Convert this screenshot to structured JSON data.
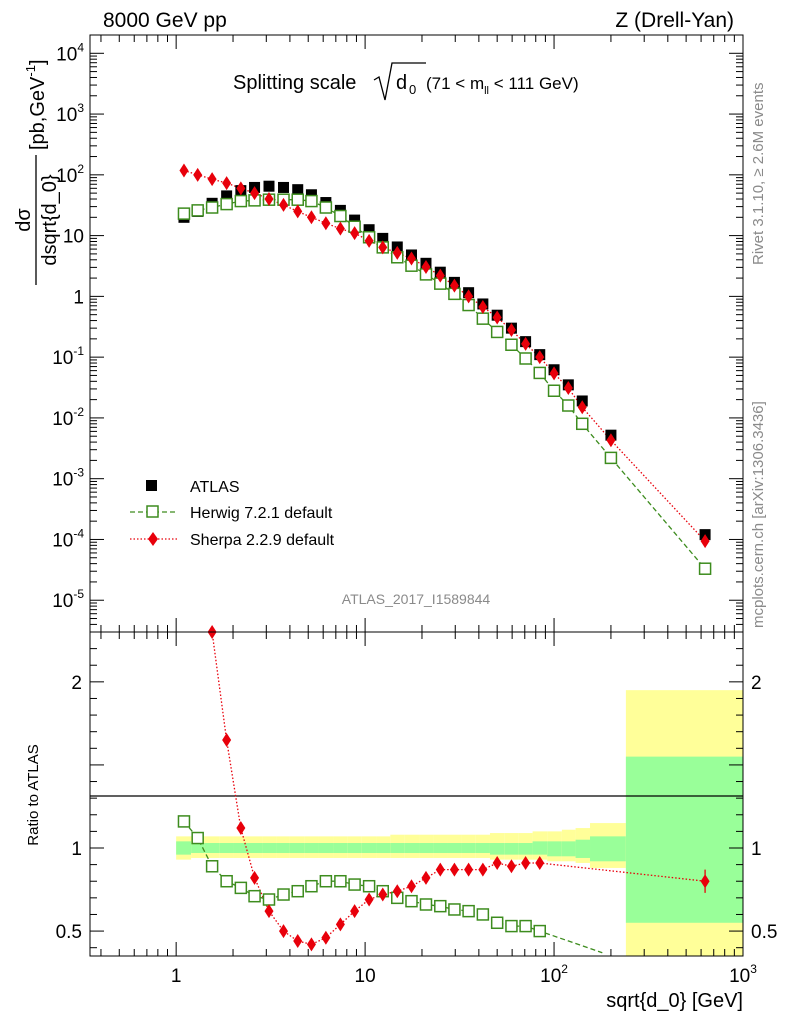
{
  "header": {
    "left": "8000 GeV pp",
    "right": "Z (Drell-Yan)"
  },
  "side_labels": {
    "rivet": "Rivet 3.1.10, ≥ 2.6M events",
    "mcplots": "mcplots.cern.ch [arXiv:1306.3436]"
  },
  "chart_data": [
    {
      "type": "scatter",
      "panel": "main",
      "title_text": "Splitting scale",
      "title_sqrt_symbol": "d",
      "title_sqrt_sub": "0",
      "title_range": "(71 < m",
      "title_range_sub": "ll",
      "title_range_end": " < 111 GeV)",
      "ylabel_num": "dσ",
      "ylabel_den": "dsqrt{d_0}",
      "ylabel_units": "[pb,GeV",
      "ylabel_units_sup": "-1",
      "ylabel_units_end": "]",
      "watermark": "ATLAS_2017_I1589844",
      "x_scale": "log",
      "y_scale": "log",
      "xlim": [
        0.35,
        1000
      ],
      "ylim": [
        3e-06,
        20000
      ],
      "y_ticks": [
        {
          "v": 1e-05,
          "base": "10",
          "exp": "-5"
        },
        {
          "v": 0.0001,
          "base": "10",
          "exp": "-4"
        },
        {
          "v": 0.001,
          "base": "10",
          "exp": "-3"
        },
        {
          "v": 0.01,
          "base": "10",
          "exp": "-2"
        },
        {
          "v": 0.1,
          "base": "10",
          "exp": "-1"
        },
        {
          "v": 1,
          "base": "1",
          "exp": ""
        },
        {
          "v": 10,
          "base": "10",
          "exp": ""
        },
        {
          "v": 100,
          "base": "10",
          "exp": "2"
        },
        {
          "v": 1000,
          "base": "10",
          "exp": "3"
        },
        {
          "v": 10000,
          "base": "10",
          "exp": "4"
        }
      ],
      "legend_position": "lower-left",
      "series": [
        {
          "name": "ATLAS",
          "color": "#000000",
          "marker": "filled-square",
          "x": [
            1.1,
            1.3,
            1.55,
            1.85,
            2.2,
            2.6,
            3.1,
            3.7,
            4.4,
            5.2,
            6.2,
            7.4,
            8.8,
            10.5,
            12.4,
            14.8,
            17.6,
            21,
            25,
            29.7,
            35.3,
            42,
            50,
            59.5,
            70.7,
            84,
            100,
            119,
            141,
            200,
            630
          ],
          "y": [
            20,
            25,
            34,
            45,
            55,
            62,
            65,
            62,
            57,
            47,
            35,
            26,
            18,
            12.5,
            9,
            6.5,
            4.8,
            3.5,
            2.5,
            1.7,
            1.15,
            0.75,
            0.49,
            0.3,
            0.18,
            0.11,
            0.062,
            0.035,
            0.019,
            0.0052,
            0.00012
          ]
        },
        {
          "name": "Herwig 7.2.1 default",
          "color": "#3d8c1e",
          "marker": "open-square",
          "x": [
            1.1,
            1.3,
            1.55,
            1.85,
            2.2,
            2.6,
            3.1,
            3.7,
            4.4,
            5.2,
            6.2,
            7.4,
            8.8,
            10.5,
            12.4,
            14.8,
            17.6,
            21,
            25,
            29.7,
            35.3,
            42,
            50,
            59.5,
            70.7,
            84,
            100,
            119,
            141,
            200,
            630
          ],
          "y": [
            23,
            26,
            29,
            33,
            37,
            38,
            39,
            39,
            39,
            37,
            29,
            21,
            14,
            9.4,
            6.4,
            4.4,
            3.2,
            2.3,
            1.62,
            1.1,
            0.72,
            0.43,
            0.26,
            0.16,
            0.095,
            0.055,
            0.028,
            0.016,
            0.008,
            0.0022,
            3.3e-05
          ]
        },
        {
          "name": "Sherpa 2.2.9 default",
          "color": "#e8000b",
          "marker": "filled-diamond",
          "x": [
            1.1,
            1.3,
            1.55,
            1.85,
            2.2,
            2.6,
            3.1,
            3.7,
            4.4,
            5.2,
            6.2,
            7.4,
            8.8,
            10.5,
            12.4,
            14.8,
            17.6,
            21,
            25,
            29.7,
            35.3,
            42,
            50,
            59.5,
            70.7,
            84,
            100,
            119,
            141,
            200,
            630
          ],
          "y": [
            118,
            100,
            85,
            73,
            60,
            50,
            40,
            32,
            25,
            20,
            16,
            13,
            11,
            8.2,
            6.4,
            5.2,
            4.2,
            3.05,
            2.2,
            1.5,
            1,
            0.67,
            0.45,
            0.28,
            0.165,
            0.1,
            0.054,
            0.031,
            0.015,
            0.0043,
            9.4e-05
          ]
        }
      ]
    },
    {
      "type": "scatter",
      "panel": "ratio",
      "ylabel": "Ratio to ATLAS",
      "xlabel": "sqrt{d_0} [GeV]",
      "x_scale": "log",
      "xlim": [
        0.35,
        1000
      ],
      "ylim": [
        0.35,
        2.3
      ],
      "x_ticks": [
        {
          "v": 1,
          "base": "1",
          "exp": ""
        },
        {
          "v": 10,
          "base": "10",
          "exp": ""
        },
        {
          "v": 100,
          "base": "10",
          "exp": "2"
        },
        {
          "v": 1000,
          "base": "10",
          "exp": "3"
        }
      ],
      "y_ticks": [
        {
          "v": 0.5,
          "label": "0.5"
        },
        {
          "v": 1,
          "label": "1"
        },
        {
          "v": 2,
          "label": "2"
        }
      ],
      "reference_line": 1,
      "uncertainty_bands": {
        "edges": [
          1,
          1.2,
          1.42,
          1.7,
          2,
          2.4,
          2.85,
          3.4,
          4,
          4.8,
          5.7,
          6.8,
          8.1,
          9.6,
          11.5,
          13.6,
          16.2,
          19.3,
          22.9,
          27.3,
          32.4,
          38.5,
          45.8,
          54.5,
          65,
          77,
          92,
          110,
          130,
          155,
          240,
          1000
        ],
        "stat_syst_color": "#ffff99",
        "stat_color": "#99ff99",
        "outer": [
          [
            0.93,
            1.07
          ],
          [
            0.94,
            1.07
          ],
          [
            0.94,
            1.07
          ],
          [
            0.94,
            1.07
          ],
          [
            0.94,
            1.07
          ],
          [
            0.94,
            1.07
          ],
          [
            0.94,
            1.07
          ],
          [
            0.94,
            1.07
          ],
          [
            0.94,
            1.07
          ],
          [
            0.94,
            1.07
          ],
          [
            0.94,
            1.07
          ],
          [
            0.94,
            1.07
          ],
          [
            0.94,
            1.07
          ],
          [
            0.94,
            1.07
          ],
          [
            0.94,
            1.07
          ],
          [
            0.94,
            1.08
          ],
          [
            0.94,
            1.08
          ],
          [
            0.94,
            1.08
          ],
          [
            0.94,
            1.08
          ],
          [
            0.94,
            1.08
          ],
          [
            0.94,
            1.08
          ],
          [
            0.94,
            1.08
          ],
          [
            0.93,
            1.09
          ],
          [
            0.93,
            1.09
          ],
          [
            0.93,
            1.09
          ],
          [
            0.93,
            1.1
          ],
          [
            0.92,
            1.1
          ],
          [
            0.92,
            1.11
          ],
          [
            0.91,
            1.12
          ],
          [
            0.88,
            1.15
          ],
          [
            0.35,
            1.95
          ]
        ],
        "inner": [
          [
            0.96,
            1.04
          ],
          [
            0.97,
            1.03
          ],
          [
            0.97,
            1.03
          ],
          [
            0.97,
            1.03
          ],
          [
            0.97,
            1.03
          ],
          [
            0.97,
            1.03
          ],
          [
            0.97,
            1.03
          ],
          [
            0.97,
            1.03
          ],
          [
            0.97,
            1.03
          ],
          [
            0.97,
            1.03
          ],
          [
            0.97,
            1.03
          ],
          [
            0.97,
            1.03
          ],
          [
            0.97,
            1.03
          ],
          [
            0.97,
            1.03
          ],
          [
            0.97,
            1.03
          ],
          [
            0.97,
            1.03
          ],
          [
            0.97,
            1.03
          ],
          [
            0.97,
            1.03
          ],
          [
            0.97,
            1.03
          ],
          [
            0.97,
            1.03
          ],
          [
            0.97,
            1.03
          ],
          [
            0.97,
            1.03
          ],
          [
            0.96,
            1.03
          ],
          [
            0.96,
            1.03
          ],
          [
            0.96,
            1.03
          ],
          [
            0.96,
            1.04
          ],
          [
            0.95,
            1.04
          ],
          [
            0.95,
            1.04
          ],
          [
            0.94,
            1.05
          ],
          [
            0.92,
            1.07
          ],
          [
            0.55,
            1.55
          ]
        ]
      },
      "series": [
        {
          "name": "Herwig 7.2.1 default",
          "color": "#3d8c1e",
          "marker": "open-square",
          "x": [
            1.1,
            1.3,
            1.55,
            1.85,
            2.2,
            2.6,
            3.1,
            3.7,
            4.4,
            5.2,
            6.2,
            7.4,
            8.8,
            10.5,
            12.4,
            14.8,
            17.6,
            21,
            25,
            29.7,
            35.3,
            42,
            50,
            59.5,
            70.7,
            84,
            180
          ],
          "y": [
            1.16,
            1.06,
            0.89,
            0.8,
            0.76,
            0.71,
            0.69,
            0.72,
            0.74,
            0.77,
            0.8,
            0.8,
            0.78,
            0.77,
            0.74,
            0.7,
            0.68,
            0.66,
            0.65,
            0.63,
            0.62,
            0.6,
            0.55,
            0.53,
            0.53,
            0.5,
            0.37
          ],
          "marker_count": 26
        },
        {
          "name": "Sherpa 2.2.9 default",
          "color": "#e8000b",
          "marker": "filled-diamond",
          "x": [
            1.55,
            1.85,
            2.2,
            2.6,
            3.1,
            3.7,
            4.4,
            5.2,
            6.2,
            7.4,
            8.8,
            10.5,
            12.4,
            14.8,
            17.6,
            21,
            25,
            29.7,
            35.3,
            42,
            50,
            59.5,
            70.7,
            84,
            630
          ],
          "y": [
            2.3,
            1.65,
            1.12,
            0.82,
            0.62,
            0.5,
            0.44,
            0.42,
            0.46,
            0.54,
            0.62,
            0.69,
            0.72,
            0.74,
            0.77,
            0.82,
            0.87,
            0.87,
            0.87,
            0.87,
            0.91,
            0.89,
            0.91,
            0.91,
            0.8
          ],
          "error_last": [
            0.73,
            0.87
          ]
        }
      ]
    }
  ]
}
